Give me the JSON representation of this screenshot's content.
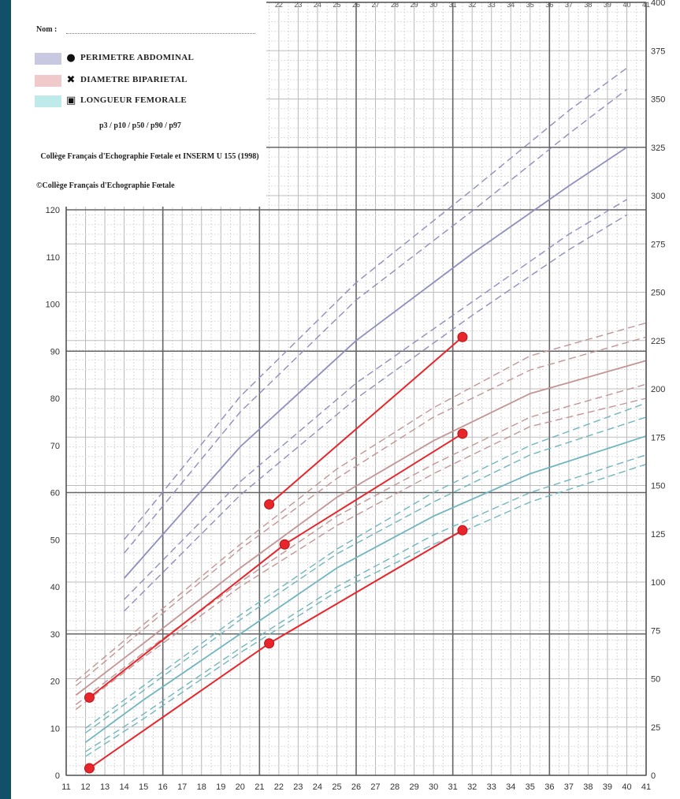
{
  "header": {
    "nom_label": "Nom :"
  },
  "legend": [
    {
      "symbol": "circle",
      "label": "PERIMETRE ABDOMINAL",
      "color": "#c8c8e0"
    },
    {
      "symbol": "cross",
      "label": "DIAMETRE BIPARIETAL",
      "color": "#f0caca"
    },
    {
      "symbol": "square",
      "label": "LONGUEUR FEMORALE",
      "color": "#bfeaec"
    }
  ],
  "notes": {
    "percentiles": "p3 / p10 / p50 / p90 / p97",
    "college": "Collège Français d'Echographie Fœtale et INSERM U 155 (1998)",
    "copyright": "©Collège Français d'Echographie Fœtale"
  },
  "chart_data": {
    "type": "line",
    "x_ticks": [
      11,
      12,
      13,
      14,
      15,
      16,
      17,
      18,
      19,
      20,
      21,
      22,
      23,
      24,
      25,
      26,
      27,
      28,
      29,
      30,
      31,
      32,
      33,
      34,
      35,
      36,
      37,
      38,
      39,
      40,
      41
    ],
    "xlim": [
      11,
      41
    ],
    "left_axis": {
      "ticks": [
        0,
        10,
        20,
        30,
        40,
        50,
        60,
        70,
        80,
        90,
        100,
        110,
        120
      ],
      "ylim": [
        0,
        120
      ]
    },
    "right_axis": {
      "ticks": [
        0,
        25,
        50,
        75,
        100,
        125,
        150,
        175,
        200,
        225,
        250,
        275,
        300,
        325,
        350,
        375,
        400
      ],
      "ylim": [
        0,
        400
      ]
    },
    "grid": true,
    "colors": {
      "patient": "#e8252b",
      "pa": "#8f8fbf",
      "bip": "#c39595",
      "lf": "#6fb6bf"
    },
    "reference_curves": {
      "perimetre_abdominal": {
        "axis": "right",
        "x": [
          14,
          20,
          26,
          32,
          37,
          40
        ],
        "p3": [
          85,
          145,
          195,
          238,
          272,
          290
        ],
        "p10": [
          91,
          152,
          203,
          245,
          280,
          298
        ],
        "p50": [
          102,
          170,
          225,
          270,
          305,
          325
        ],
        "p90": [
          115,
          188,
          246,
          292,
          332,
          355
        ],
        "p97": [
          122,
          196,
          255,
          303,
          344,
          366
        ]
      },
      "diametre_biparietal": {
        "axis": "left",
        "x": [
          11.5,
          15,
          20,
          25,
          30,
          35,
          41
        ],
        "p3": [
          14,
          25,
          40,
          53,
          64,
          74,
          80
        ],
        "p10": [
          15,
          26,
          41,
          55,
          66,
          76,
          83
        ],
        "p50": [
          17,
          28,
          44,
          59,
          71,
          81,
          88
        ],
        "p90": [
          19,
          31,
          48,
          63,
          76,
          86,
          93
        ],
        "p97": [
          20,
          32,
          49,
          65,
          78,
          89,
          96
        ]
      },
      "longueur_femorale": {
        "axis": "left",
        "x": [
          12,
          15,
          20,
          25,
          30,
          35,
          41
        ],
        "p3": [
          4,
          12,
          26,
          39,
          49,
          58,
          66
        ],
        "p10": [
          5,
          13,
          27,
          40,
          51,
          60,
          68
        ],
        "p50": [
          7,
          16,
          30,
          44,
          55,
          64,
          72
        ],
        "p90": [
          9,
          18,
          33,
          47,
          58,
          68,
          76
        ],
        "p97": [
          10,
          19,
          34,
          48,
          60,
          70,
          79
        ]
      }
    },
    "patient_series": [
      {
        "axis": "left",
        "x": [
          21.5,
          31.5
        ],
        "y": [
          57.5,
          93
        ]
      },
      {
        "axis": "left",
        "x": [
          12.2,
          22.3,
          31.5
        ],
        "y": [
          16.5,
          49,
          72.5
        ]
      },
      {
        "axis": "left",
        "x": [
          12.2,
          21.5,
          31.5
        ],
        "y": [
          1.5,
          28,
          52
        ]
      }
    ]
  }
}
